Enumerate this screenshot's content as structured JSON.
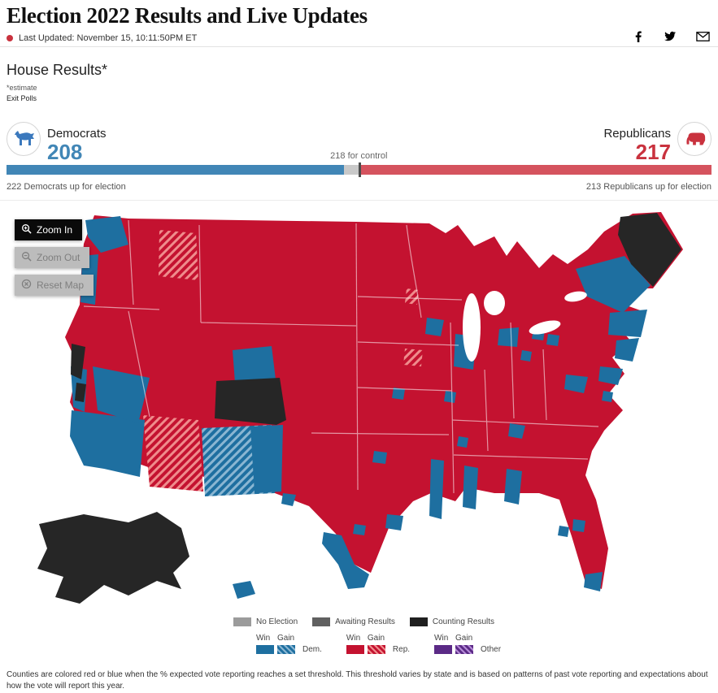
{
  "header": {
    "title": "Election 2022 Results and Live Updates",
    "last_updated": "Last Updated: November 15, 10:11:50PM ET",
    "icons": {
      "facebook": "f-glyph",
      "twitter": "bird-glyph",
      "email": "envelope-glyph"
    }
  },
  "house": {
    "title": "House Results*",
    "estimate_note": "*estimate",
    "exit_polls": "Exit Polls"
  },
  "results": {
    "dem": {
      "label": "Democrats",
      "seats": "208",
      "up_for_election": "222 Democrats up for election"
    },
    "rep": {
      "label": "Republicans",
      "seats": "217",
      "up_for_election": "213 Republicans up for election"
    },
    "control_label": "218 for control",
    "control_seats": 218,
    "total_seats": 435
  },
  "map": {
    "controls": {
      "zoom_in": "Zoom In",
      "zoom_out": "Zoom Out",
      "reset": "Reset Map"
    }
  },
  "legend": {
    "statuses": [
      {
        "label": "No Election",
        "color": "#9b9b9b"
      },
      {
        "label": "Awaiting Results",
        "color": "#606060"
      },
      {
        "label": "Counting Results",
        "color": "#1f1f1f"
      }
    ],
    "win_label": "Win",
    "gain_label": "Gain",
    "parties": [
      {
        "label": "Dem.",
        "color": "#1e6fa0"
      },
      {
        "label": "Rep.",
        "color": "#c41230"
      },
      {
        "label": "Other",
        "color": "#5b2a86"
      }
    ]
  },
  "footer": {
    "note": "Counties are colored red or blue when the % expected vote reporting reaches a set threshold. This threshold varies by state and is based on patterns of past vote reporting and expectations about how the vote will report this year."
  },
  "colors": {
    "dem_map": "#1e6fa0",
    "dem_bar": "#4186b6",
    "rep_map": "#c41230",
    "rep_bar": "#d5535e",
    "counting": "#262626",
    "no_election": "#9b9b9b",
    "awaiting": "#606060",
    "other": "#5b2a86",
    "live_dot": "#c9323e"
  }
}
